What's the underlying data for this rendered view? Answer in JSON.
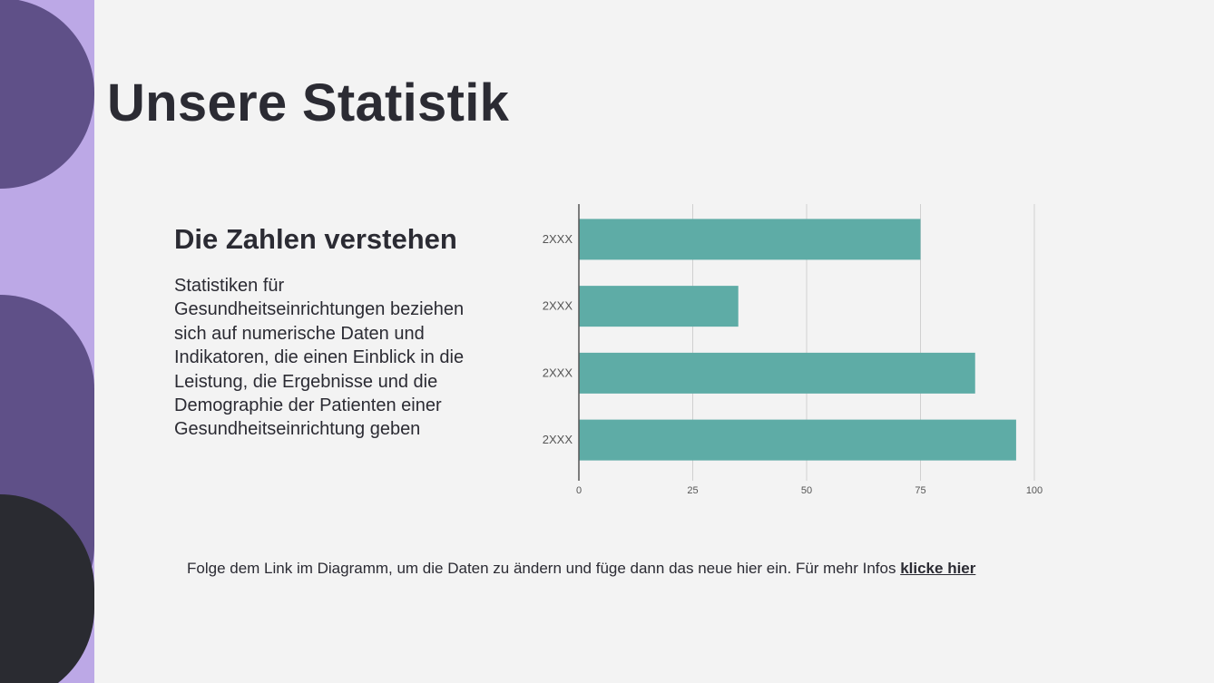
{
  "slide": {
    "title": "Unsere Statistik",
    "subtitle": "Die Zahlen verstehen",
    "body": "Statistiken für Gesundheitseinrichtungen beziehen sich auf numerische Daten und Indikatoren, die einen Einblick in die Leistung, die Ergebnisse und die Demographie der Patienten einer Gesundheitseinrichtung geben",
    "footer_text": "Folge dem Link im Diagramm, um die Daten zu ändern und füge dann das neue hier ein. Für mehr Infos ",
    "footer_link": "klicke hier"
  },
  "colors": {
    "bar": "#5eaca6",
    "grid": "#d0d0d0",
    "axis": "#555555",
    "label": "#555555"
  },
  "chart_data": {
    "type": "bar",
    "orientation": "horizontal",
    "categories": [
      "2XXX",
      "2XXX",
      "2XXX",
      "2XXX"
    ],
    "values": [
      75,
      35,
      87,
      96
    ],
    "xlim": [
      0,
      100
    ],
    "xticks": [
      0,
      25,
      50,
      75,
      100
    ],
    "title": "",
    "xlabel": "",
    "ylabel": "",
    "grid": true,
    "legend": "none"
  }
}
